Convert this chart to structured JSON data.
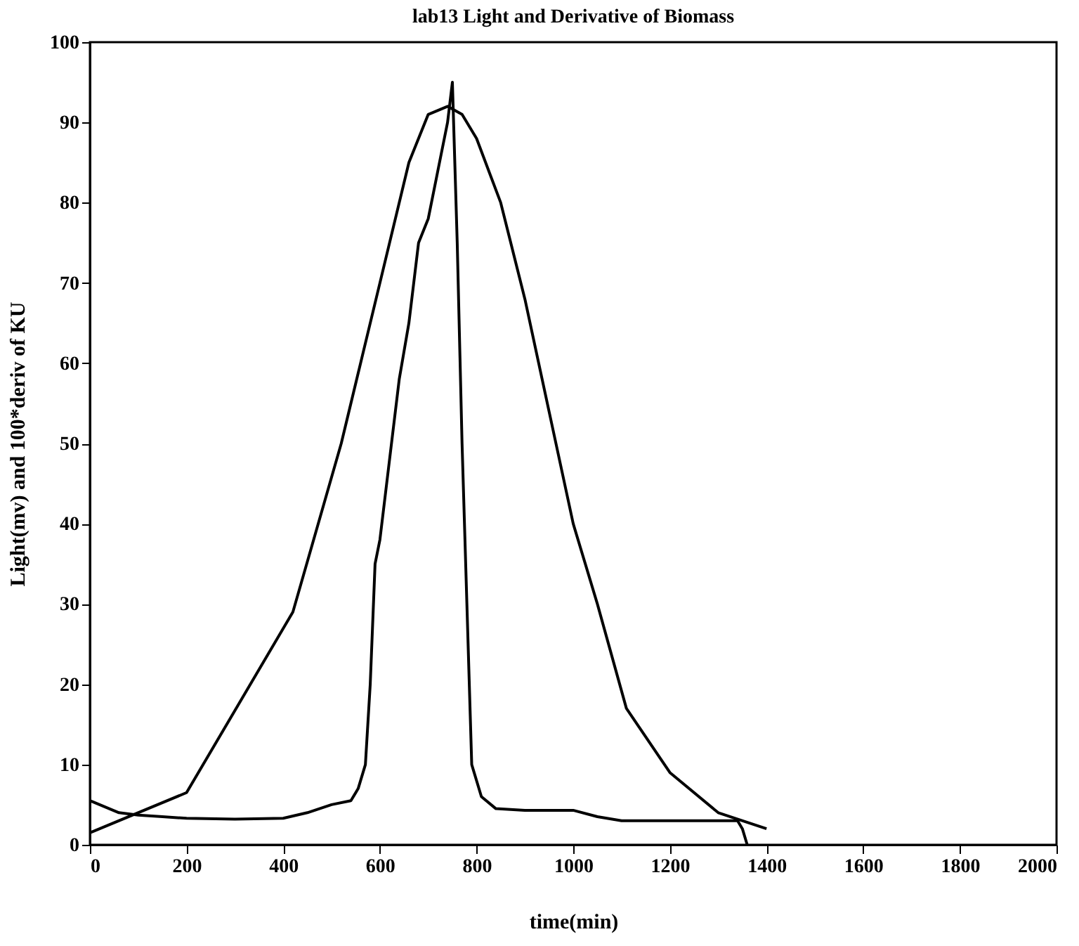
{
  "chart_data": {
    "type": "line",
    "title": "lab13 Light and Derivative of Biomass",
    "xlabel": "time(min)",
    "ylabel": "Light(mv) and 100*deriv of KU",
    "xlim": [
      0,
      2000
    ],
    "xticks": [
      0,
      200,
      400,
      600,
      800,
      1000,
      1200,
      1400,
      1600,
      1800,
      2000
    ],
    "ylim": [
      0,
      100
    ],
    "yticks": [
      0,
      10,
      20,
      30,
      40,
      50,
      60,
      70,
      80,
      90,
      100
    ],
    "grid": false,
    "line_style": "solid",
    "marker": "none",
    "series": [
      {
        "color": "#000000",
        "x": [
          0,
          200,
          420,
          520,
          600,
          660,
          700,
          740,
          770,
          800,
          850,
          900,
          950,
          1000,
          1050,
          1110,
          1200,
          1300,
          1400
        ],
        "values": [
          1.5,
          6.5,
          29,
          50,
          70,
          85,
          91,
          92,
          91,
          88,
          80,
          68,
          54,
          40,
          30,
          17,
          9,
          4,
          2
        ]
      },
      {
        "color": "#000000",
        "x": [
          0,
          20,
          40,
          60,
          100,
          150,
          200,
          300,
          400,
          450,
          500,
          540,
          555,
          570,
          580,
          590,
          600,
          620,
          640,
          660,
          680,
          700,
          720,
          740,
          750,
          760,
          770,
          780,
          790,
          810,
          840,
          900,
          1000,
          1050,
          1100,
          1200,
          1300,
          1340,
          1350,
          1360
        ],
        "values": [
          5.5,
          5,
          4.5,
          4,
          3.7,
          3.5,
          3.3,
          3.2,
          3.3,
          4,
          5,
          5.5,
          7,
          10,
          20,
          35,
          38,
          48,
          58,
          65,
          75,
          78,
          84,
          90,
          95,
          75,
          50,
          30,
          10,
          6,
          4.5,
          4.3,
          4.3,
          3.5,
          3,
          3,
          3,
          3,
          2,
          0
        ]
      }
    ]
  }
}
